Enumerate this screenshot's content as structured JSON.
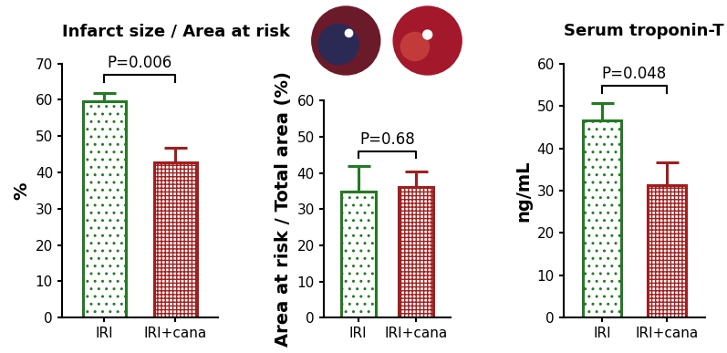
{
  "chart_data": [
    {
      "type": "bar",
      "title": "Infarct size / Area at risk",
      "y_label": "%",
      "categories": [
        "IRI",
        "IRI+cana"
      ],
      "values": [
        59.5,
        42.8
      ],
      "errors": [
        2.5,
        4.0
      ],
      "colors": [
        "#237a23",
        "#a01e1e"
      ],
      "ylim": [
        0,
        70
      ],
      "yticks": [
        0,
        10,
        20,
        30,
        40,
        50,
        60,
        70
      ],
      "annotation": "P=0.006"
    },
    {
      "type": "bar",
      "y_label": "Area at risk / Total area (%)",
      "categories": [
        "IRI",
        "IRI+cana"
      ],
      "values": [
        34.8,
        36.2
      ],
      "errors": [
        7.0,
        4.2
      ],
      "colors": [
        "#237a23",
        "#a01e1e"
      ],
      "ylim": [
        0,
        60
      ],
      "yticks": [
        0,
        10,
        20,
        30,
        40,
        50,
        60
      ],
      "annotation": "P=0.68"
    },
    {
      "type": "bar",
      "title": "Serum troponin-T",
      "y_label": "ng/mL",
      "categories": [
        "IRI",
        "IRI+cana"
      ],
      "values": [
        46.6,
        31.2
      ],
      "errors": [
        4.0,
        5.5
      ],
      "colors": [
        "#237a23",
        "#a01e1e"
      ],
      "ylim": [
        0,
        60
      ],
      "yticks": [
        0,
        10,
        20,
        30,
        40,
        50,
        60
      ],
      "annotation": "P=0.048"
    }
  ]
}
